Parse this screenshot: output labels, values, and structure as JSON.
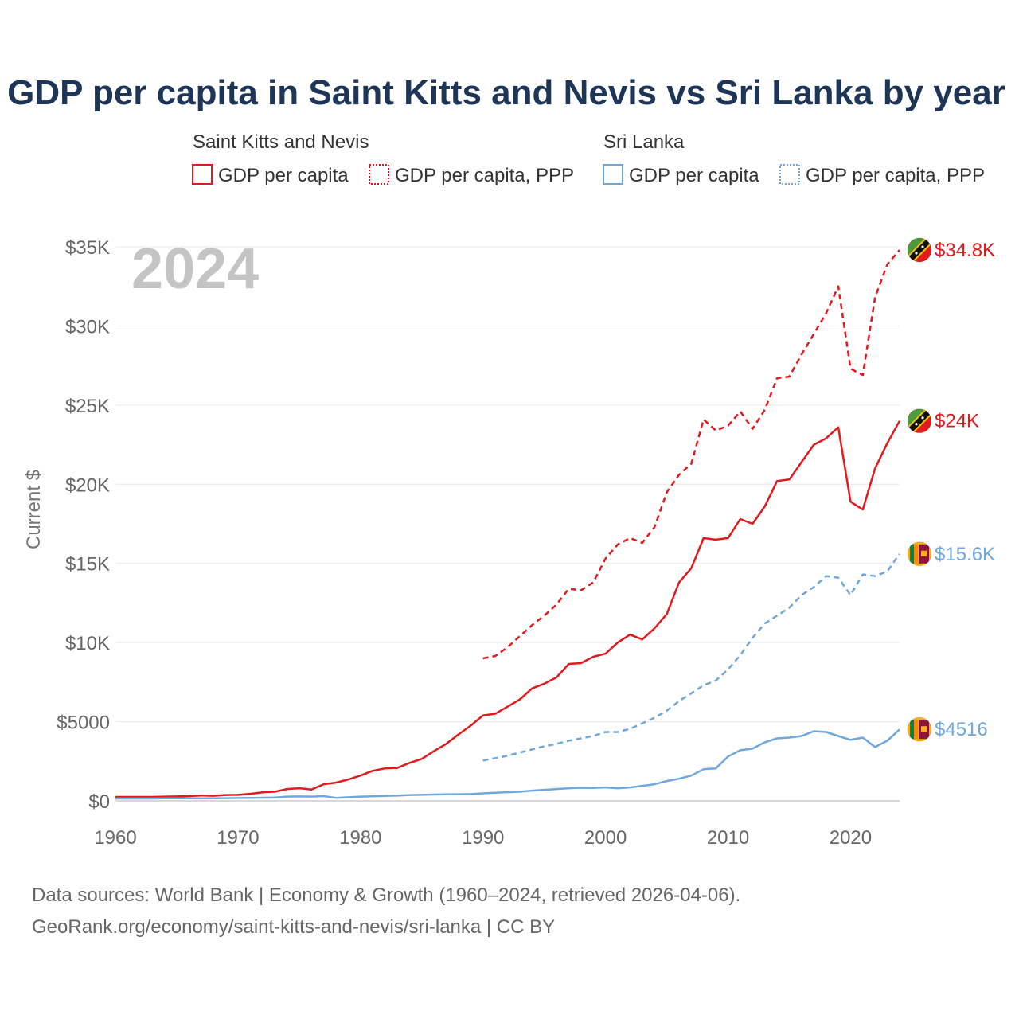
{
  "chart_data": {
    "type": "line",
    "title": "GDP per capita in Saint Kitts and Nevis vs Sri Lanka by year",
    "xlabel": "",
    "ylabel": "Current $",
    "xlim": [
      1960,
      2024
    ],
    "ylim": [
      0,
      35000
    ],
    "x_ticks": [
      1960,
      1970,
      1980,
      1990,
      2000,
      2010,
      2020
    ],
    "x_tick_labels": [
      "1960",
      "1970",
      "1980",
      "1990",
      "2000",
      "2010",
      "2020"
    ],
    "y_ticks": [
      0,
      5000,
      10000,
      15000,
      20000,
      25000,
      30000,
      35000
    ],
    "y_tick_labels": [
      "$0",
      "$5000",
      "$10K",
      "$15K",
      "$20K",
      "$25K",
      "$30K",
      "$35K"
    ],
    "grid": true,
    "year_badge": "2024",
    "legend": [
      {
        "group": "Saint Kitts and Nevis",
        "items": [
          "GDP per capita",
          "GDP per capita, PPP"
        ]
      },
      {
        "group": "Sri Lanka",
        "items": [
          "GDP per capita",
          "GDP per capita, PPP"
        ]
      }
    ],
    "series": [
      {
        "name": "Saint Kitts and Nevis GDP per capita",
        "color": "#e31a1c",
        "dash": "solid",
        "end_label": "$24K",
        "flag": "saint-kitts-and-nevis",
        "x": [
          1960,
          1961,
          1962,
          1963,
          1964,
          1965,
          1966,
          1967,
          1968,
          1969,
          1970,
          1971,
          1972,
          1973,
          1974,
          1975,
          1976,
          1977,
          1978,
          1979,
          1980,
          1981,
          1982,
          1983,
          1984,
          1985,
          1986,
          1987,
          1988,
          1989,
          1990,
          1991,
          1992,
          1993,
          1994,
          1995,
          1996,
          1997,
          1998,
          1999,
          2000,
          2001,
          2002,
          2003,
          2004,
          2005,
          2006,
          2007,
          2008,
          2009,
          2010,
          2011,
          2012,
          2013,
          2014,
          2015,
          2016,
          2017,
          2018,
          2019,
          2020,
          2021,
          2022,
          2023,
          2024
        ],
        "values": [
          250,
          250,
          250,
          250,
          270,
          280,
          300,
          340,
          320,
          370,
          380,
          450,
          540,
          580,
          750,
          800,
          720,
          1050,
          1150,
          1350,
          1600,
          1900,
          2050,
          2080,
          2400,
          2650,
          3150,
          3600,
          4200,
          4750,
          5400,
          5500,
          5950,
          6400,
          7100,
          7400,
          7800,
          8650,
          8700,
          9100,
          9300,
          10000,
          10500,
          10200,
          10900,
          11800,
          13800,
          14700,
          16600,
          16500,
          16600,
          17800,
          17500,
          18600,
          20200,
          20300,
          21400,
          22500,
          22900,
          23600,
          18900,
          18400,
          21000,
          22600,
          24000
        ]
      },
      {
        "name": "Saint Kitts and Nevis GDP per capita, PPP",
        "color": "#e31a1c",
        "dash": "dashed",
        "end_label": "$34.8K",
        "flag": "saint-kitts-and-nevis",
        "x": [
          1990,
          1991,
          1992,
          1993,
          1994,
          1995,
          1996,
          1997,
          1998,
          1999,
          2000,
          2001,
          2002,
          2003,
          2004,
          2005,
          2006,
          2007,
          2008,
          2009,
          2010,
          2011,
          2012,
          2013,
          2014,
          2015,
          2016,
          2017,
          2018,
          2019,
          2020,
          2021,
          2022,
          2023,
          2024
        ],
        "values": [
          9000,
          9150,
          9700,
          10400,
          11100,
          11700,
          12400,
          13400,
          13300,
          13800,
          15300,
          16200,
          16600,
          16300,
          17300,
          19500,
          20600,
          21300,
          24100,
          23400,
          23700,
          24600,
          23500,
          24700,
          26700,
          26800,
          28200,
          29500,
          30800,
          32500,
          27300,
          26900,
          31800,
          33900,
          34800
        ]
      },
      {
        "name": "Sri Lanka GDP per capita",
        "color": "#6fa8dc",
        "dash": "solid",
        "end_label": "$4516",
        "flag": "sri-lanka",
        "x": [
          1960,
          1961,
          1962,
          1963,
          1964,
          1965,
          1966,
          1967,
          1968,
          1969,
          1970,
          1971,
          1972,
          1973,
          1974,
          1975,
          1976,
          1977,
          1978,
          1979,
          1980,
          1981,
          1982,
          1983,
          1984,
          1985,
          1986,
          1987,
          1988,
          1989,
          1990,
          1991,
          1992,
          1993,
          1994,
          1995,
          1996,
          1997,
          1998,
          1999,
          2000,
          2001,
          2002,
          2003,
          2004,
          2005,
          2006,
          2007,
          2008,
          2009,
          2010,
          2011,
          2012,
          2013,
          2014,
          2015,
          2016,
          2017,
          2018,
          2019,
          2020,
          2021,
          2022,
          2023,
          2024
        ],
        "values": [
          150,
          150,
          150,
          150,
          160,
          160,
          160,
          160,
          160,
          170,
          180,
          190,
          200,
          210,
          270,
          280,
          270,
          300,
          190,
          230,
          270,
          290,
          310,
          330,
          370,
          380,
          400,
          410,
          420,
          430,
          480,
          520,
          550,
          580,
          650,
          700,
          750,
          800,
          830,
          820,
          850,
          800,
          850,
          950,
          1050,
          1250,
          1400,
          1600,
          2000,
          2050,
          2800,
          3200,
          3300,
          3700,
          3950,
          4000,
          4100,
          4400,
          4350,
          4100,
          3850,
          4000,
          3400,
          3800,
          4516
        ]
      },
      {
        "name": "Sri Lanka GDP per capita, PPP",
        "color": "#6fa8dc",
        "dash": "dashed",
        "end_label": "$15.6K",
        "flag": "sri-lanka",
        "x": [
          1990,
          1991,
          1992,
          1993,
          1994,
          1995,
          1996,
          1997,
          1998,
          1999,
          2000,
          2001,
          2002,
          2003,
          2004,
          2005,
          2006,
          2007,
          2008,
          2009,
          2010,
          2011,
          2012,
          2013,
          2014,
          2015,
          2016,
          2017,
          2018,
          2019,
          2020,
          2021,
          2022,
          2023,
          2024
        ],
        "values": [
          2550,
          2700,
          2850,
          3050,
          3250,
          3450,
          3600,
          3800,
          3950,
          4100,
          4350,
          4350,
          4550,
          4900,
          5250,
          5700,
          6300,
          6800,
          7300,
          7600,
          8300,
          9200,
          10300,
          11200,
          11700,
          12200,
          13000,
          13500,
          14200,
          14100,
          13000,
          14300,
          14200,
          14500,
          15600
        ]
      }
    ]
  },
  "source_lines": [
    "Data sources: World Bank | Economy & Growth (1960–2024, retrieved 2026-04-06).",
    "GeoRank.org/economy/saint-kitts-and-nevis/sri-lanka | CC BY"
  ]
}
